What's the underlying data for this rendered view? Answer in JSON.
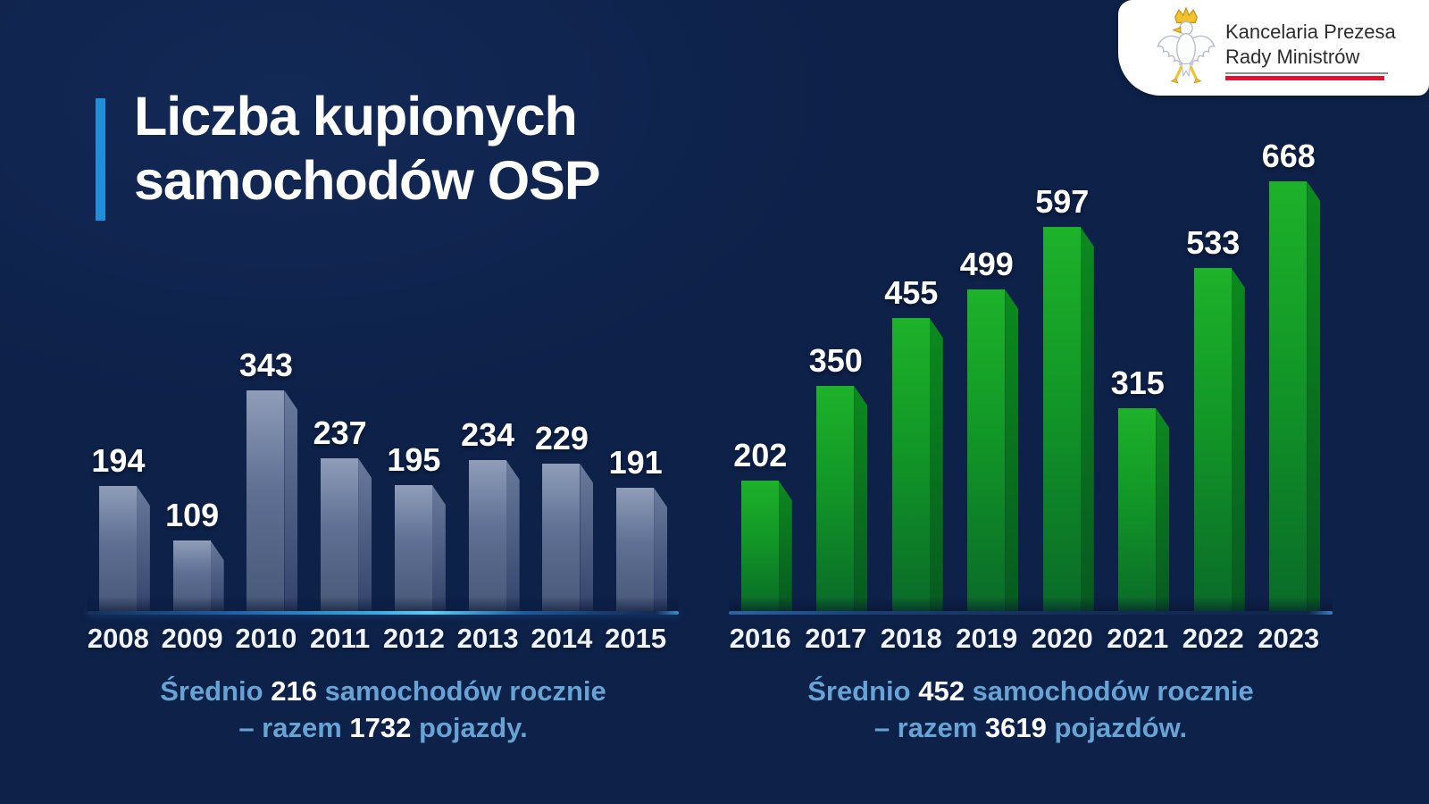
{
  "page": {
    "background": "#0d2149",
    "text_accent": "#67a3d4"
  },
  "header": {
    "title_line1": "Liczba kupionych",
    "title_line2": "samochodów OSP",
    "accent_color": "#1e8fd8"
  },
  "logo": {
    "line1": "Kancelaria Prezesa",
    "line2": "Rady Ministrów",
    "eagle_icon": "polish-eagle",
    "red_line_color": "#e8112d"
  },
  "chart_data": [
    {
      "type": "bar",
      "categories": [
        "2008",
        "2009",
        "2010",
        "2011",
        "2012",
        "2013",
        "2014",
        "2015"
      ],
      "values": [
        194,
        109,
        343,
        237,
        195,
        234,
        229,
        191
      ],
      "ylim": [
        0,
        680
      ],
      "grid": false,
      "legend": false,
      "colors": {
        "front_top": "#8f9db8",
        "front_mid": "#5f7094",
        "front_bottom": "#475878",
        "side_top": "#6a7a9c",
        "side_bottom": "#33436b"
      },
      "axis_colors": [
        "#14325c",
        "#1d5a9e",
        "#39a7e0",
        "#5ecdf5",
        "#1d5a9e",
        "#112c54",
        "#3f8fd0"
      ],
      "average": 216,
      "total": 1732,
      "caption": {
        "prefix": "Średnio ",
        "average_text": "216",
        "mid": " samochodów rocznie",
        "line2_prefix": "– razem ",
        "total_text": "1732",
        "suffix": " pojazdy."
      }
    },
    {
      "type": "bar",
      "categories": [
        "2016",
        "2017",
        "2018",
        "2019",
        "2020",
        "2021",
        "2022",
        "2023"
      ],
      "values": [
        202,
        350,
        455,
        499,
        597,
        315,
        533,
        668
      ],
      "ylim": [
        0,
        680
      ],
      "grid": false,
      "legend": false,
      "colors": {
        "front_top": "#1eb22a",
        "front_mid": "#129727",
        "front_bottom": "#0a6b29",
        "side_top": "#0c8a1e",
        "side_bottom": "#075a20"
      },
      "axis_colors": [
        "#2c65a6",
        "#1a4076",
        "#16335f",
        "#132e58",
        "#122b53",
        "#102750",
        "#3a7fc0"
      ],
      "average": 452,
      "total": 3619,
      "caption": {
        "prefix": "Średnio ",
        "average_text": "452",
        "mid": " samochodów rocznie",
        "line2_prefix": "– razem ",
        "total_text": "3619",
        "suffix": " pojazdów."
      }
    }
  ]
}
